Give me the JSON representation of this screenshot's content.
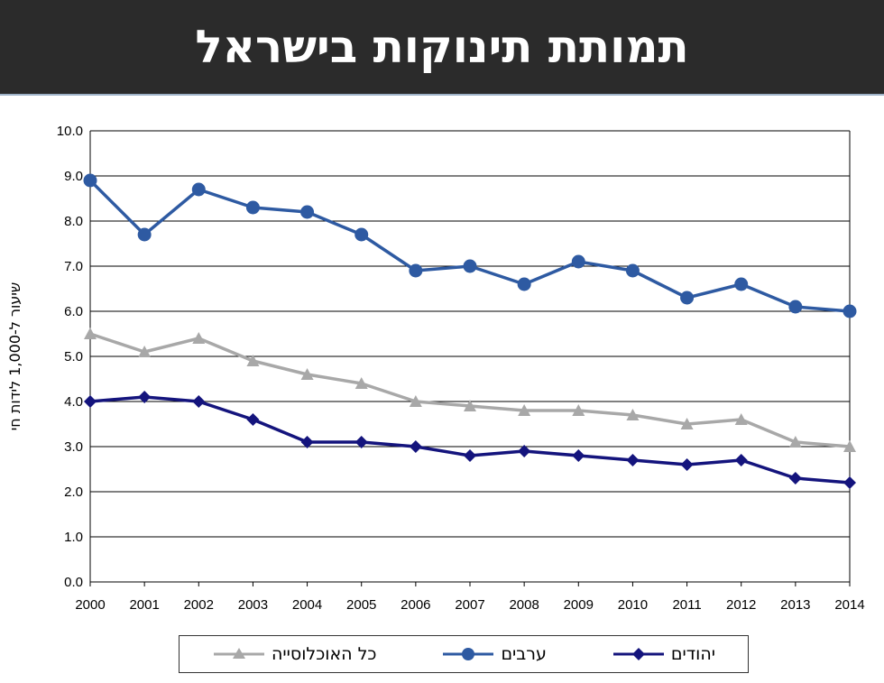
{
  "header": {
    "title": "תמותת תינוקות בישראל"
  },
  "colors": {
    "jews": "#14147d",
    "arabs": "#2e5aa2",
    "total": "#a8a8a8",
    "header_bg": "#2b2b2b"
  },
  "chart_data": {
    "type": "line",
    "title": "תמותת תינוקות בישראל",
    "xlabel": "",
    "ylabel": "שיעור ל-1,000 לידות חי",
    "ylim": [
      0,
      10
    ],
    "yticks": [
      "0.0",
      "1.0",
      "2.0",
      "3.0",
      "4.0",
      "5.0",
      "6.0",
      "7.0",
      "8.0",
      "9.0",
      "10.0"
    ],
    "categories": [
      "2000",
      "2001",
      "2002",
      "2003",
      "2004",
      "2005",
      "2006",
      "2007",
      "2008",
      "2009",
      "2010",
      "2011",
      "2012",
      "2013",
      "2014"
    ],
    "grid": true,
    "legend_position": "bottom",
    "series": [
      {
        "name": "יהודים",
        "marker": "diamond",
        "color": "#14147d",
        "values": [
          4.0,
          4.1,
          4.0,
          3.6,
          3.1,
          3.1,
          3.0,
          2.8,
          2.9,
          2.8,
          2.7,
          2.6,
          2.7,
          2.3,
          2.2
        ]
      },
      {
        "name": "ערבים",
        "marker": "circle",
        "color": "#2e5aa2",
        "values": [
          8.9,
          7.7,
          8.7,
          8.3,
          8.2,
          7.7,
          6.9,
          7.0,
          6.6,
          7.1,
          6.9,
          6.3,
          6.6,
          6.1,
          6.0
        ]
      },
      {
        "name": "כל האוכלוסייה",
        "marker": "triangle",
        "color": "#a8a8a8",
        "values": [
          5.5,
          5.1,
          5.4,
          4.9,
          4.6,
          4.4,
          4.0,
          3.9,
          3.8,
          3.8,
          3.7,
          3.5,
          3.6,
          3.1,
          3.0
        ]
      }
    ]
  }
}
